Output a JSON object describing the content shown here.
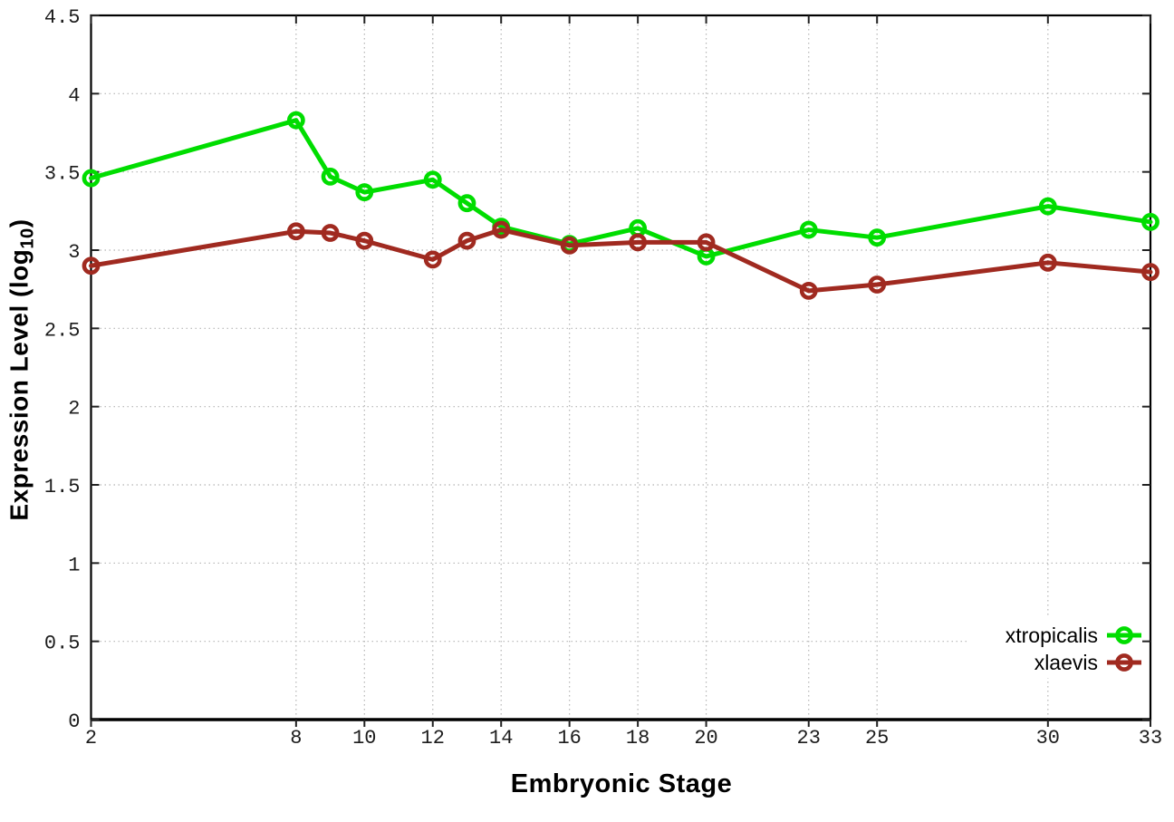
{
  "chart_data": {
    "type": "line",
    "title": "",
    "xlabel": "Embryonic Stage",
    "ylabel": {
      "pre": "Expression Level (log",
      "sub": "10",
      "post": ")"
    },
    "xlim": [
      2,
      33
    ],
    "ylim": [
      0,
      4.5
    ],
    "x_ticks": [
      2,
      8,
      10,
      12,
      14,
      16,
      18,
      20,
      23,
      25,
      30,
      33
    ],
    "y_ticks": [
      0,
      0.5,
      1,
      1.5,
      2,
      2.5,
      3,
      3.5,
      4,
      4.5
    ],
    "grid": true,
    "legend_position": "bottom-right",
    "x": [
      2,
      8,
      9,
      10,
      12,
      13,
      14,
      16,
      18,
      20,
      23,
      25,
      30,
      33
    ],
    "series": [
      {
        "name": "xtropicalis",
        "color": "#00dd00",
        "values": [
          3.46,
          3.83,
          3.47,
          3.37,
          3.45,
          3.3,
          3.15,
          3.04,
          3.14,
          2.96,
          3.13,
          3.08,
          3.28,
          3.18
        ]
      },
      {
        "name": "xlaevis",
        "color": "#a02a20",
        "values": [
          2.9,
          3.12,
          3.11,
          3.06,
          2.94,
          3.06,
          3.13,
          3.03,
          3.05,
          3.05,
          2.74,
          2.78,
          2.92,
          2.86
        ]
      }
    ],
    "colors": {
      "border": "#000000",
      "grid": "#b5b5b5",
      "tick_text": "#1c1c1c",
      "background": "#ffffff"
    }
  }
}
